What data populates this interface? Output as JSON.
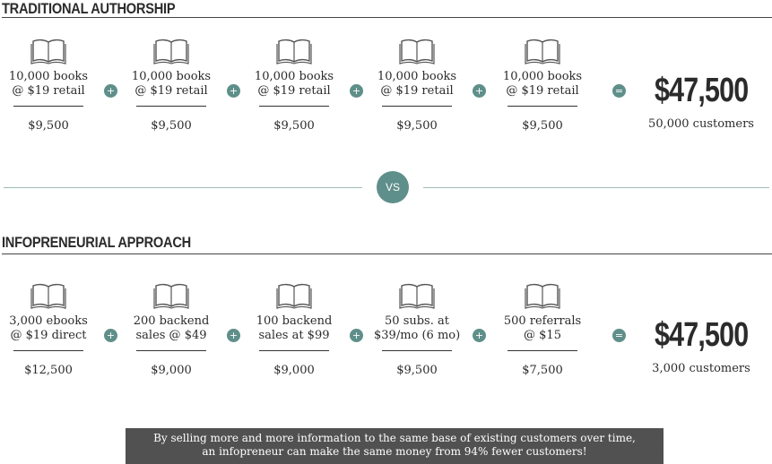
{
  "traditional": {
    "title": "TRADITIONAL AUTHORSHIP",
    "items": [
      {
        "line1": "10,000 books",
        "line2": "@ $19 retail",
        "value": "$9,500"
      },
      {
        "line1": "10,000 books",
        "line2": "@ $19 retail",
        "value": "$9,500"
      },
      {
        "line1": "10,000 books",
        "line2": "@ $19 retail",
        "value": "$9,500"
      },
      {
        "line1": "10,000 books",
        "line2": "@ $19 retail",
        "value": "$9,500"
      },
      {
        "line1": "10,000 books",
        "line2": "@ $19 retail",
        "value": "$9,500"
      }
    ],
    "plus": "+",
    "equals": "=",
    "total": "$47,500",
    "customers": "50,000 customers"
  },
  "vs": "VS",
  "infopreneurial": {
    "title": "INFOPRENEURIAL APPROACH",
    "items": [
      {
        "line1": "3,000 ebooks",
        "line2": "@ $19 direct",
        "value": "$12,500"
      },
      {
        "line1": "200 backend",
        "line2": "sales @ $49",
        "value": "$9,000"
      },
      {
        "line1": "100 backend",
        "line2": "sales at $99",
        "value": "$9,000"
      },
      {
        "line1": "50 subs. at",
        "line2": "$39/mo (6 mo)",
        "value": "$9,500"
      },
      {
        "line1": "500 referrals",
        "line2": "@ $15",
        "value": "$7,500"
      }
    ],
    "plus": "+",
    "equals": "=",
    "total": "$47,500",
    "customers": "3,000 customers"
  },
  "banner": {
    "line1": "By selling more and more information to the same base of existing customers over time,",
    "line2": "an infopreneur can make the same money from 94% fewer customers!"
  },
  "colors": {
    "accent": "#5f8f8a",
    "text": "#2b2b2b",
    "banner": "#515151"
  },
  "icons": {
    "item": "open-book-icon"
  }
}
